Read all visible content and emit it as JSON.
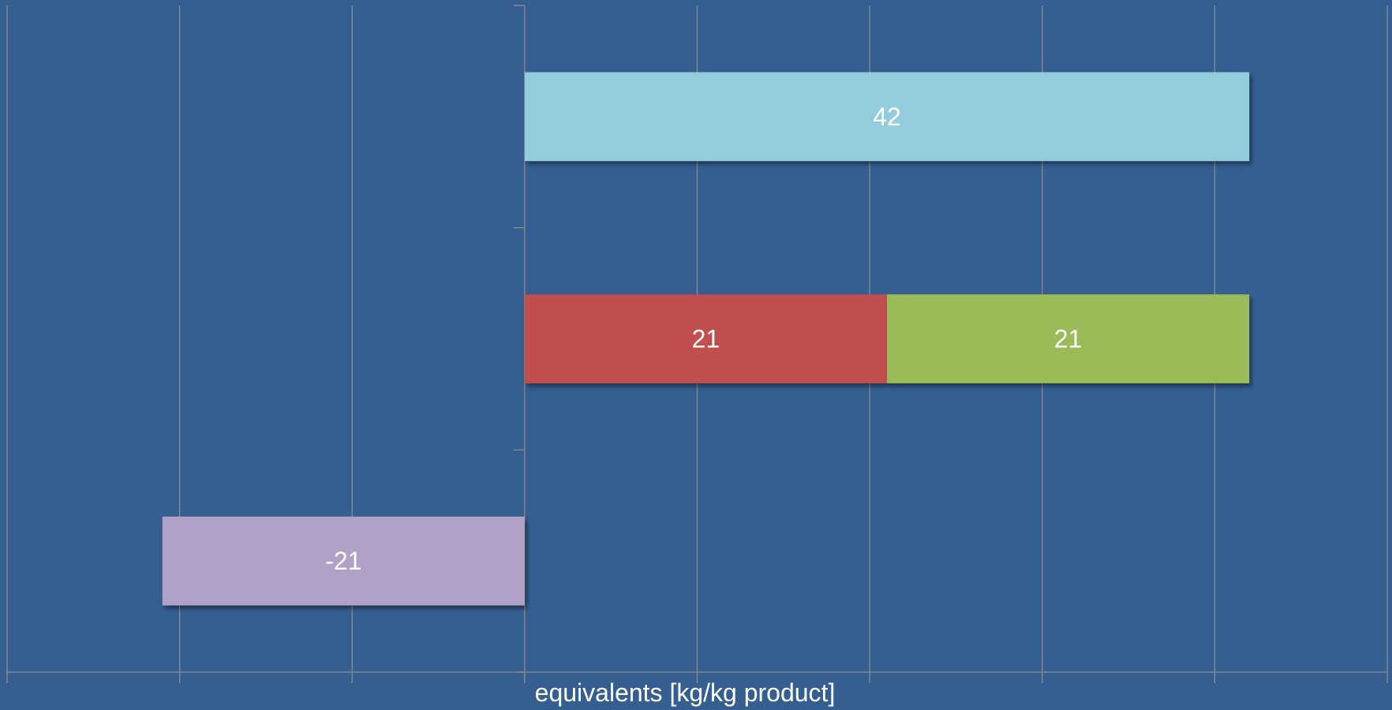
{
  "background_color": "#355F91",
  "grid_color": "#8C8C8C",
  "label_color": "#FFFFFF",
  "chart_data": {
    "type": "bar",
    "orientation": "horizontal",
    "stacked": true,
    "xlabel": "equivalents [kg/kg product]",
    "xlim": [
      -30,
      50
    ],
    "grid": true,
    "show_tick_labels": false,
    "categories": [
      "",
      "",
      ""
    ],
    "series": [
      {
        "values": [
          null,
          null,
          -21
        ],
        "color": "#B2A1C7",
        "labels": [
          "",
          "",
          "-21"
        ]
      },
      {
        "values": [
          null,
          21,
          null
        ],
        "color": "#C0504D",
        "labels": [
          "",
          "21",
          ""
        ]
      },
      {
        "values": [
          null,
          21,
          null
        ],
        "color": "#9BBB59",
        "labels": [
          "",
          "21",
          ""
        ]
      },
      {
        "values": [
          42,
          null,
          null
        ],
        "color": "#93CDDD",
        "labels": [
          "42",
          "",
          ""
        ]
      }
    ]
  }
}
